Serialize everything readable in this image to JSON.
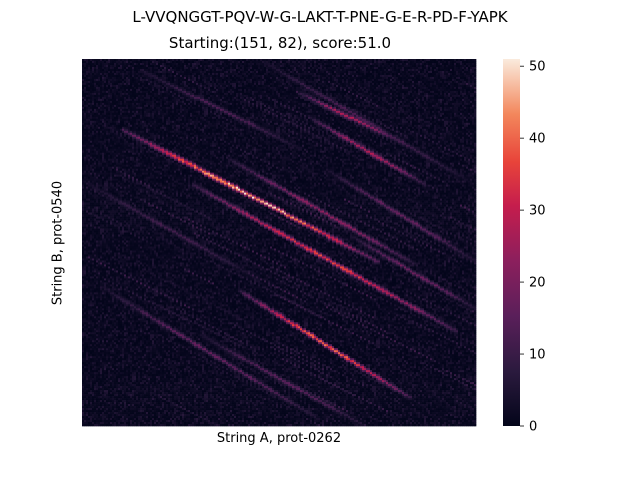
{
  "chart_data": {
    "type": "heatmap",
    "title": "L-VVQNGGT-PQV-W-G-LAKT-T-PNE-G-E-R-PD-F-YAPK",
    "subtitle": "Starting:(151, 82), score:51.0",
    "xlabel": "String A, prot-0262",
    "ylabel": "String B, prot-0540",
    "colormap": "rocket",
    "colorbar": {
      "range": [
        0,
        51
      ],
      "ticks": [
        0,
        10,
        20,
        30,
        40,
        50
      ],
      "tick_labels": [
        "0",
        "10",
        "20",
        "30",
        "40",
        "50"
      ]
    },
    "x_tick_labels": [],
    "y_tick_labels": [],
    "max_score": 51.0,
    "max_at": [
      151,
      82
    ],
    "diagonal_streaks": [
      {
        "start": [
          0.1,
          0.19
        ],
        "end": [
          0.75,
          0.55
        ],
        "peak": 51
      },
      {
        "start": [
          0.28,
          0.34
        ],
        "end": [
          0.95,
          0.74
        ],
        "peak": 38
      },
      {
        "start": [
          0.4,
          0.63
        ],
        "end": [
          0.83,
          0.92
        ],
        "peak": 42
      },
      {
        "start": [
          0.55,
          0.09
        ],
        "end": [
          0.8,
          0.22
        ],
        "peak": 30
      },
      {
        "start": [
          0.58,
          0.16
        ],
        "end": [
          0.87,
          0.34
        ],
        "peak": 29
      },
      {
        "start": [
          0.37,
          0.27
        ],
        "end": [
          0.85,
          0.56
        ],
        "peak": 25
      },
      {
        "start": [
          0.05,
          0.62
        ],
        "end": [
          0.6,
          0.98
        ],
        "peak": 18
      },
      {
        "start": [
          0.3,
          0.75
        ],
        "end": [
          0.72,
          1.0
        ],
        "peak": 16
      },
      {
        "start": [
          0.15,
          0.03
        ],
        "end": [
          0.55,
          0.24
        ],
        "peak": 14
      },
      {
        "start": [
          0.45,
          0.0
        ],
        "end": [
          0.98,
          0.33
        ],
        "peak": 14
      },
      {
        "start": [
          0.62,
          0.3
        ],
        "end": [
          1.0,
          0.55
        ],
        "peak": 18
      },
      {
        "start": [
          0.0,
          0.33
        ],
        "end": [
          0.45,
          0.6
        ],
        "peak": 12
      },
      {
        "start": [
          0.68,
          0.48
        ],
        "end": [
          1.0,
          0.68
        ],
        "peak": 20
      }
    ]
  }
}
